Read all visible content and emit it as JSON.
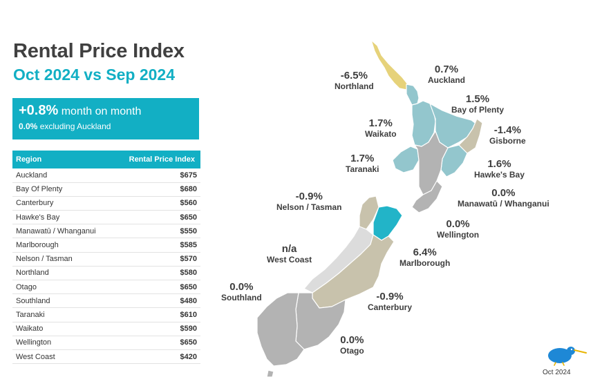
{
  "title": "Rental Price Index",
  "subtitle": "Oct 2024 vs Sep 2024",
  "summary": {
    "headline_value": "+0.8%",
    "headline_text": "month on month",
    "sub_value": "0.0%",
    "sub_text": "excluding Auckland"
  },
  "table": {
    "col_region": "Region",
    "col_index": "Rental Price Index",
    "rows": [
      {
        "region": "Auckland",
        "price": "$675"
      },
      {
        "region": "Bay Of Plenty",
        "price": "$680"
      },
      {
        "region": "Canterbury",
        "price": "$560"
      },
      {
        "region": "Hawke's Bay",
        "price": "$650"
      },
      {
        "region": "Manawatū / Whanganui",
        "price": "$550"
      },
      {
        "region": "Marlborough",
        "price": "$585"
      },
      {
        "region": "Nelson / Tasman",
        "price": "$570"
      },
      {
        "region": "Northland",
        "price": "$580"
      },
      {
        "region": "Otago",
        "price": "$650"
      },
      {
        "region": "Southland",
        "price": "$480"
      },
      {
        "region": "Taranaki",
        "price": "$610"
      },
      {
        "region": "Waikato",
        "price": "$590"
      },
      {
        "region": "Wellington",
        "price": "$650"
      },
      {
        "region": "West Coast",
        "price": "$420"
      }
    ]
  },
  "map_labels": {
    "northland": {
      "pct": "-6.5%",
      "name": "Northland"
    },
    "auckland": {
      "pct": "0.7%",
      "name": "Auckland"
    },
    "bay_of_plenty": {
      "pct": "1.5%",
      "name": "Bay of Plenty"
    },
    "waikato": {
      "pct": "1.7%",
      "name": "Waikato"
    },
    "gisborne": {
      "pct": "-1.4%",
      "name": "Gisborne"
    },
    "taranaki": {
      "pct": "1.7%",
      "name": "Taranaki"
    },
    "hawkes_bay": {
      "pct": "1.6%",
      "name": "Hawke's Bay"
    },
    "manawatu": {
      "pct": "0.0%",
      "name": "Manawatū / Whanganui"
    },
    "nelson": {
      "pct": "-0.9%",
      "name": "Nelson / Tasman"
    },
    "wellington": {
      "pct": "0.0%",
      "name": "Wellington"
    },
    "west_coast": {
      "pct": "n/a",
      "name": "West Coast"
    },
    "marlborough": {
      "pct": "6.4%",
      "name": "Marlborough"
    },
    "southland": {
      "pct": "0.0%",
      "name": "Southland"
    },
    "canterbury": {
      "pct": "-0.9%",
      "name": "Canterbury"
    },
    "otago": {
      "pct": "0.0%",
      "name": "Otago"
    }
  },
  "colors": {
    "accent": "#12afc4",
    "teal_region": "#93c6cd",
    "negative_region": "#e6d27a",
    "tan_region": "#c8c2ac",
    "grey_region": "#b3b3b3",
    "light_grey_region": "#dcdcdc",
    "highlight_region": "#22b4c8"
  },
  "logo": {
    "icon": "kiwi-bird-icon"
  },
  "footer_date": "Oct 2024"
}
